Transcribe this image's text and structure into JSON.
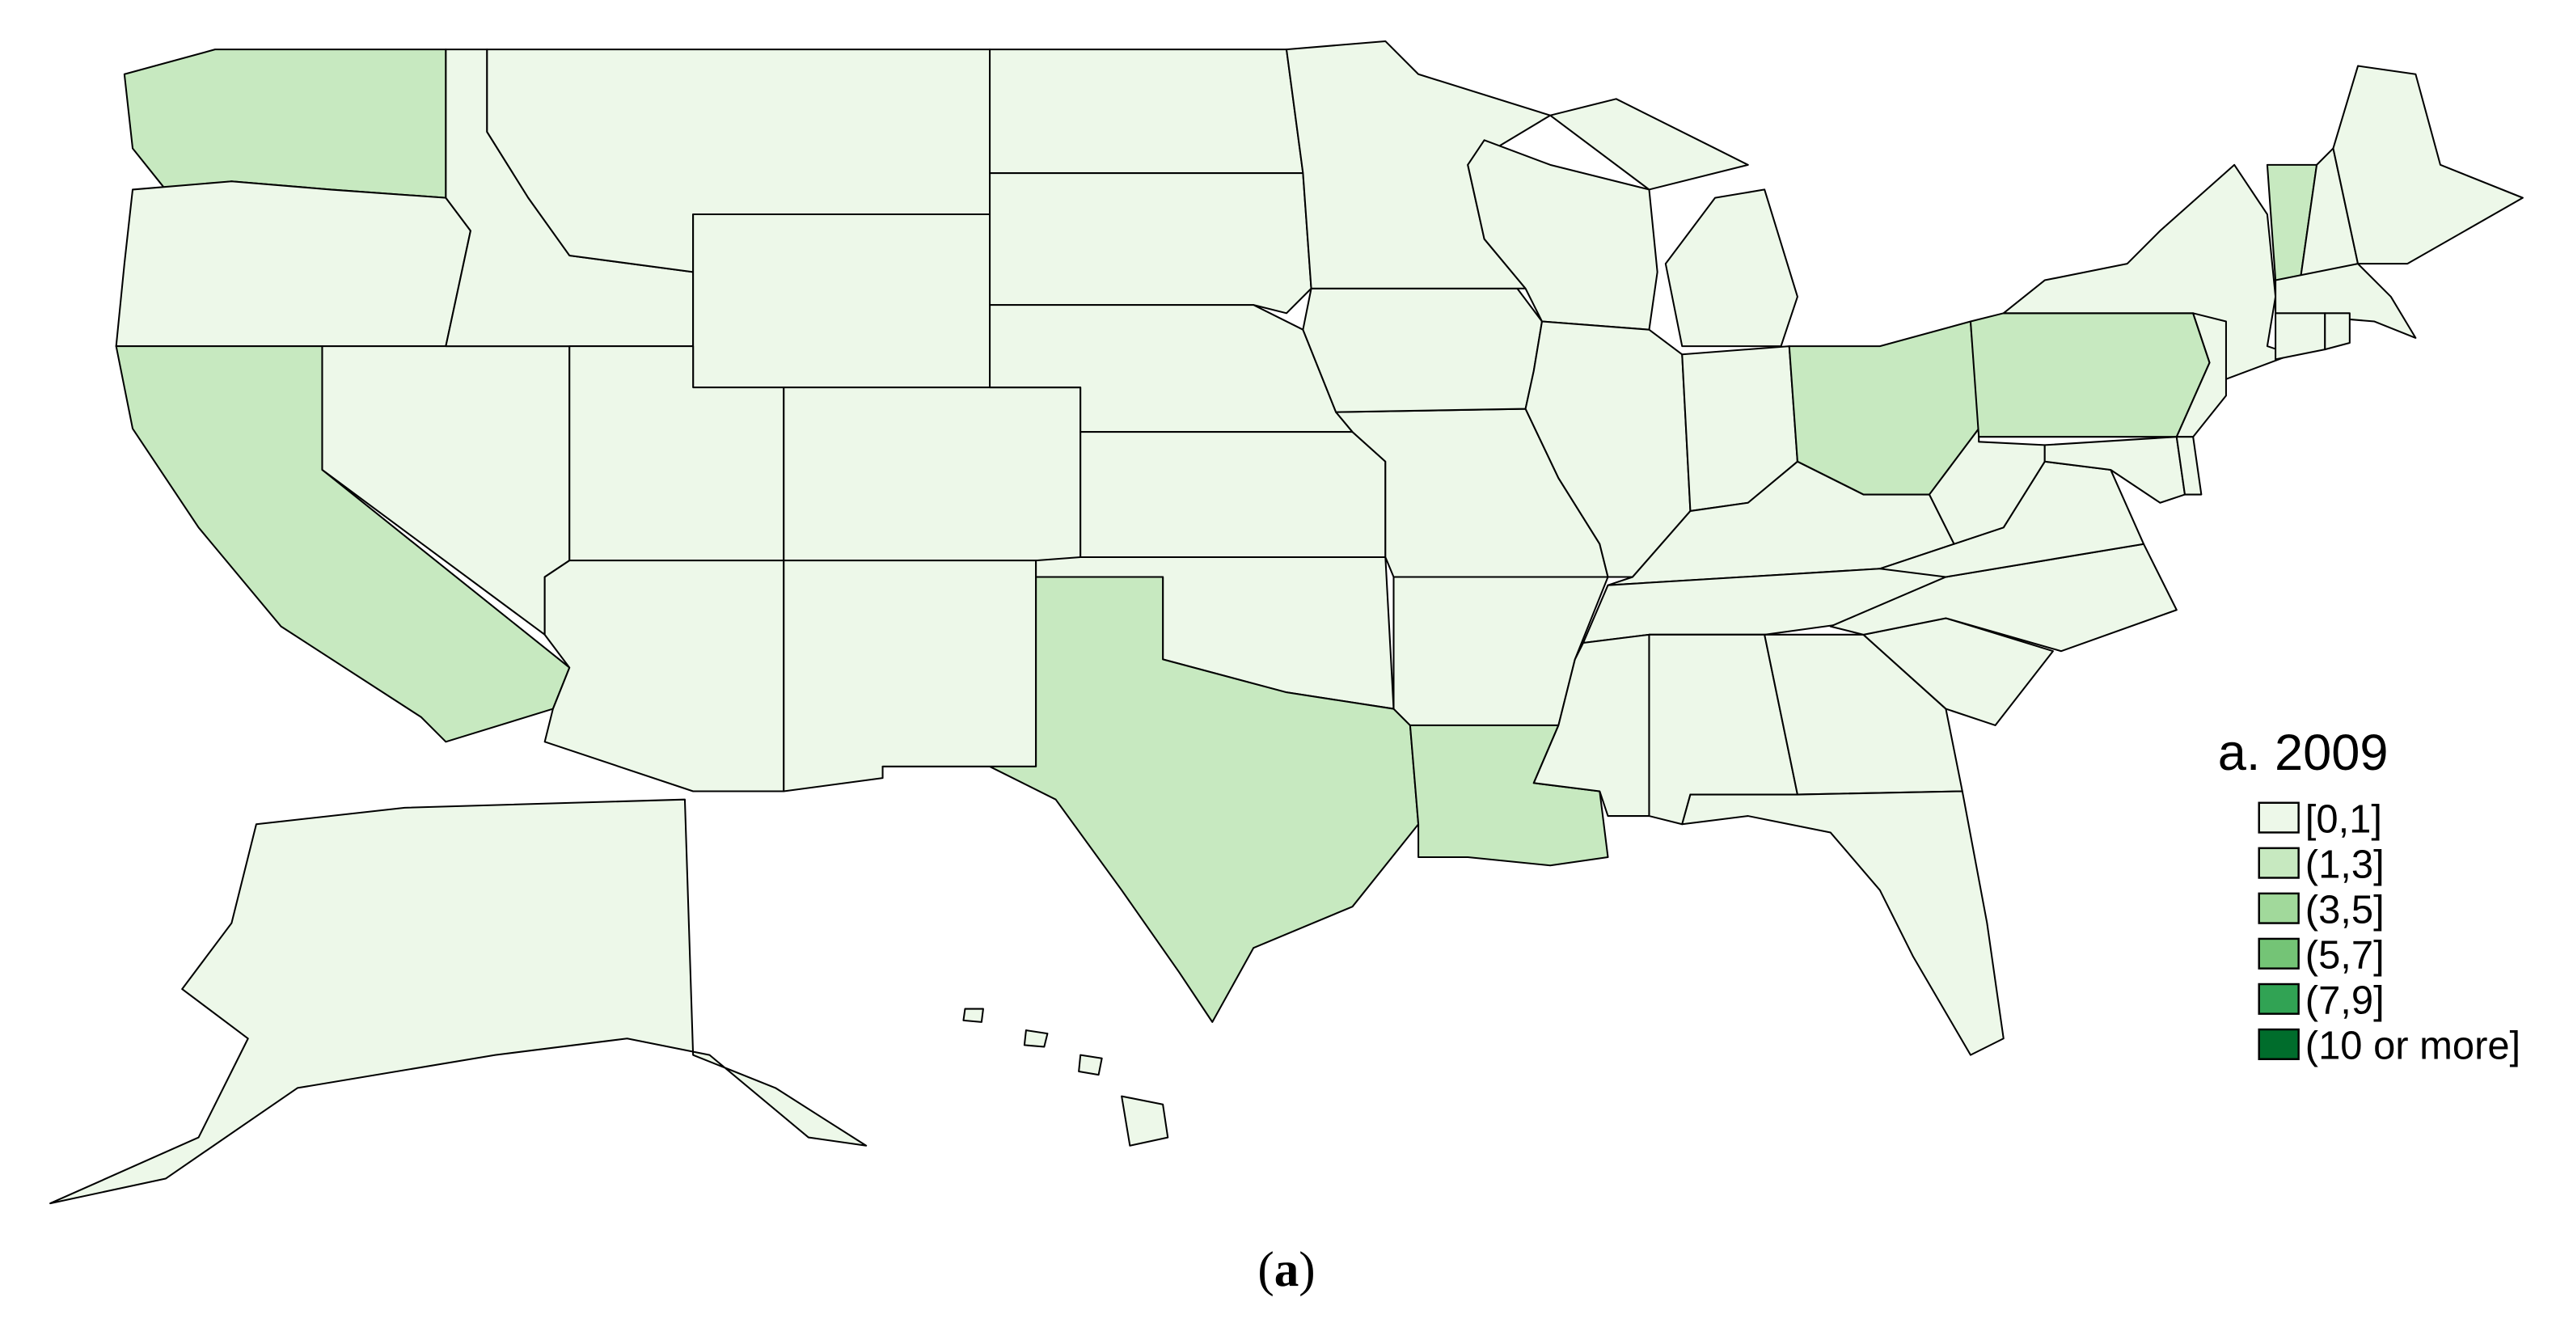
{
  "legend": {
    "title": "a. 2009",
    "bins": [
      {
        "label": "[0,1]",
        "color": "#edf8e9"
      },
      {
        "label": "(1,3]",
        "color": "#c7e9c0"
      },
      {
        "label": "(3,5]",
        "color": "#a1d99b"
      },
      {
        "label": "(5,7]",
        "color": "#74c476"
      },
      {
        "label": "(7,9]",
        "color": "#31a354"
      },
      {
        "label": "(10 or more]",
        "color": "#006d2c"
      }
    ]
  },
  "caption": {
    "open": "(",
    "letter": "a",
    "close": ")"
  },
  "region_bins": {
    "WA": 1,
    "OR": 0,
    "CA": 1,
    "NV": 0,
    "ID": 0,
    "MT": 0,
    "WY": 0,
    "UT": 0,
    "CO": 0,
    "AZ": 0,
    "NM": 0,
    "ND": 0,
    "SD": 0,
    "NE": 0,
    "KS": 0,
    "OK": 0,
    "TX": 1,
    "LA": 1,
    "AR": 0,
    "MO": 0,
    "IA": 0,
    "MN": 0,
    "WI": 0,
    "IL": 0,
    "MI": 0,
    "IN": 0,
    "OH": 1,
    "KY": 0,
    "TN": 0,
    "MS": 0,
    "AL": 0,
    "GA": 0,
    "FL": 0,
    "SC": 0,
    "NC": 0,
    "VA": 0,
    "WV": 0,
    "PA": 1,
    "NY": 0,
    "NJ": 0,
    "MD": 0,
    "DE": 0,
    "VT": 1,
    "NH": 0,
    "ME": 0,
    "MA": 0,
    "CT": 0,
    "RI": 0,
    "AK": 0,
    "HI": 0
  }
}
